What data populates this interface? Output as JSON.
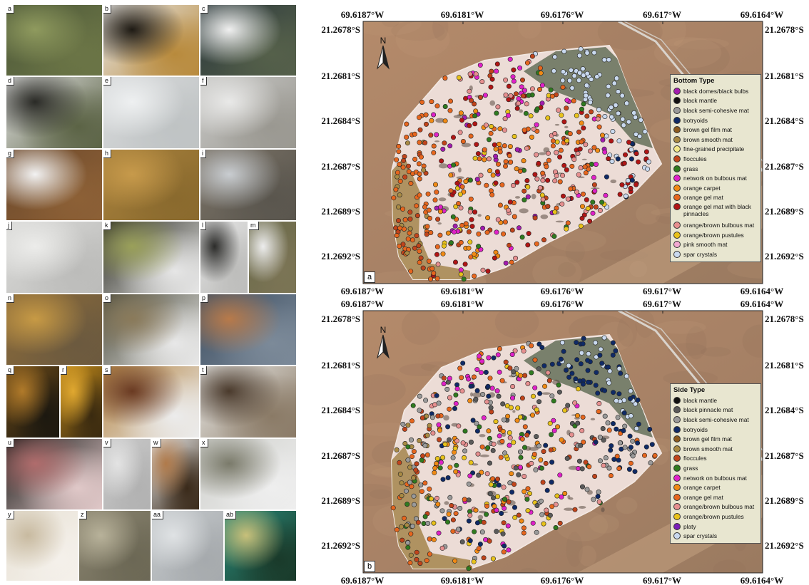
{
  "photos": [
    {
      "label": "a",
      "colors": [
        "#4f5a3a",
        "#8f9a5e",
        "#6b7546"
      ]
    },
    {
      "label": "b",
      "colors": [
        "#e8e8e8",
        "#1e1a14",
        "#b88a3c"
      ]
    },
    {
      "label": "c",
      "colors": [
        "#2d3a3d",
        "#f0f0f0",
        "#55604a"
      ]
    },
    {
      "label": "d",
      "colors": [
        "#e4e4e4",
        "#2a2a26",
        "#5b6345"
      ]
    },
    {
      "label": "e",
      "colors": [
        "#d8dadb",
        "#eef0f1",
        "#bfc3c4"
      ]
    },
    {
      "label": "f",
      "colors": [
        "#c9c9c7",
        "#e9e9e8",
        "#9a9891"
      ]
    },
    {
      "label": "g",
      "colors": [
        "#6e4a2c",
        "#f2f2f2",
        "#8c6036"
      ]
    },
    {
      "label": "h",
      "colors": [
        "#a8813c",
        "#c79a4b",
        "#8a6a2e"
      ]
    },
    {
      "label": "i",
      "colors": [
        "#7a7266",
        "#c9cdd1",
        "#5a564e"
      ]
    },
    {
      "label": "j",
      "colors": [
        "#d9d9d7",
        "#ececea",
        "#bcbcba"
      ]
    },
    {
      "label": "k",
      "colors": [
        "#2a2a20",
        "#9aa05a",
        "#e6e6e6"
      ]
    },
    {
      "label": "l",
      "colors": [
        "#e5e5e5",
        "#2c2c2a",
        "#bdbdbb"
      ]
    },
    {
      "label": "m",
      "colors": [
        "#6b6a4a",
        "#ededed",
        "#7b7455"
      ]
    },
    {
      "label": "n",
      "colors": [
        "#8a6a3a",
        "#c79a45",
        "#6c5a3f"
      ]
    },
    {
      "label": "o",
      "colors": [
        "#4a4a3a",
        "#8a7a5a",
        "#e8e8e8"
      ]
    },
    {
      "label": "p",
      "colors": [
        "#3e4f62",
        "#b87a4a",
        "#7c8a99"
      ]
    },
    {
      "label": "q",
      "colors": [
        "#6b4a18",
        "#b07a2a",
        "#1c1810"
      ]
    },
    {
      "label": "r",
      "colors": [
        "#c18a1a",
        "#e0a830",
        "#3a2a10"
      ]
    },
    {
      "label": "s",
      "colors": [
        "#b38443",
        "#6a3a22",
        "#ececec"
      ]
    },
    {
      "label": "t",
      "colors": [
        "#ececea",
        "#4a3a2c",
        "#8a7a66"
      ]
    },
    {
      "label": "u",
      "colors": [
        "#1a1a18",
        "#b06c6c",
        "#e0c8c8"
      ]
    },
    {
      "label": "v",
      "colors": [
        "#c9c9c9",
        "#e3e3e3",
        "#b2b2b2"
      ]
    },
    {
      "label": "w",
      "colors": [
        "#ececec",
        "#b07a4a",
        "#3a2a1a"
      ]
    },
    {
      "label": "x",
      "colors": [
        "#cfd0cc",
        "#7a7a6a",
        "#eeeeee"
      ]
    },
    {
      "label": "y",
      "colors": [
        "#e8e2d6",
        "#c8baa0",
        "#f4f0ea"
      ]
    },
    {
      "label": "z",
      "colors": [
        "#8a8470",
        "#b8b29a",
        "#6c6855"
      ]
    },
    {
      "label": "aa",
      "colors": [
        "#c5c9cc",
        "#dfe2e4",
        "#a6aaad"
      ]
    },
    {
      "label": "ab",
      "colors": [
        "#2a8a7a",
        "#c8c07a",
        "#1a3a2a"
      ]
    }
  ],
  "maps": [
    {
      "id": "a",
      "panel_label": "a",
      "top_ticks": [
        "69.6187°W",
        "69.6181°W",
        "69.6176°W",
        "69.617°W",
        "69.6164°W"
      ],
      "bottom_ticks": [
        "69.6187°W",
        "69.6181°W",
        "69.6176°W",
        "69.617°W",
        "69.6164°W"
      ],
      "left_ticks": [
        "21.2678°S",
        "21.2681°S",
        "21.2684°S",
        "21.2687°S",
        "21.2689°S",
        "21.2692°S"
      ],
      "right_ticks": [
        "21.2678°S",
        "21.2681°S",
        "21.2684°S",
        "21.2687°S",
        "21.2689°S",
        "21.2692°S"
      ],
      "north_label": "N",
      "legend": {
        "title": "Bottom Type",
        "items": [
          {
            "label": "black domes/black bulbs",
            "color": "#a21caf"
          },
          {
            "label": "black mantle",
            "color": "#111111"
          },
          {
            "label": "black semi-cohesive mat",
            "color": "#9a9a9a"
          },
          {
            "label": "botryoids",
            "color": "#0f2a66"
          },
          {
            "label": "brown gel film mat",
            "color": "#8b5a1e"
          },
          {
            "label": "brown smooth mat",
            "color": "#a88a44"
          },
          {
            "label": "fine-grained precipitate",
            "color": "#f3e88a"
          },
          {
            "label": "floccules",
            "color": "#c0441b"
          },
          {
            "label": "grass",
            "color": "#2f7a1f"
          },
          {
            "label": "network on bulbous mat",
            "color": "#e021c8"
          },
          {
            "label": "orange carpet",
            "color": "#f08a14"
          },
          {
            "label": "orange gel mat",
            "color": "#e6661e"
          },
          {
            "label": "orange gel mat with black pinnacles",
            "color": "#b01515"
          },
          {
            "label": "orange/brown bulbous mat",
            "color": "#e68f8f"
          },
          {
            "label": "orange/brown pustules",
            "color": "#e8c21a"
          },
          {
            "label": "pink smooth mat",
            "color": "#f2a9d2"
          },
          {
            "label": "spar crystals",
            "color": "#c9d9ef"
          }
        ]
      }
    },
    {
      "id": "b",
      "panel_label": "b",
      "top_ticks": [
        "69.6187°W",
        "69.6181°W",
        "69.6176°W",
        "69.617°W",
        "69.6164°W"
      ],
      "bottom_ticks": [
        "69.6187°W",
        "69.6181°W",
        "69.6176°W",
        "69.617°W",
        "69.6164°W"
      ],
      "left_ticks": [
        "21.2678°S",
        "21.2681°S",
        "21.2684°S",
        "21.2687°S",
        "21.2689°S",
        "21.2692°S"
      ],
      "right_ticks": [
        "21.2678°S",
        "21.2681°S",
        "21.2684°S",
        "21.2687°S",
        "21.2689°S",
        "21.2692°S"
      ],
      "north_label": "N",
      "legend": {
        "title": "Side Type",
        "items": [
          {
            "label": "black mantle",
            "color": "#111111"
          },
          {
            "label": "black pinnacle mat",
            "color": "#5a5a5a"
          },
          {
            "label": "black semi-cohesive mat",
            "color": "#9a9a9a"
          },
          {
            "label": "botryoids",
            "color": "#0f2a66"
          },
          {
            "label": "brown gel film mat",
            "color": "#8b5a1e"
          },
          {
            "label": "brown smooth mat",
            "color": "#a88a44"
          },
          {
            "label": "floccules",
            "color": "#c0441b"
          },
          {
            "label": "grass",
            "color": "#2f7a1f"
          },
          {
            "label": "network on bulbous mat",
            "color": "#e021c8"
          },
          {
            "label": "orange carpet",
            "color": "#f08a14"
          },
          {
            "label": "orange gel mat",
            "color": "#e6661e"
          },
          {
            "label": "orange/brown bulbous mat",
            "color": "#e68f8f"
          },
          {
            "label": "orange/brown pustules",
            "color": "#e8c21a"
          },
          {
            "label": "platy",
            "color": "#7a1fb8"
          },
          {
            "label": "spar crystals",
            "color": "#c9d9ef"
          }
        ]
      }
    }
  ]
}
